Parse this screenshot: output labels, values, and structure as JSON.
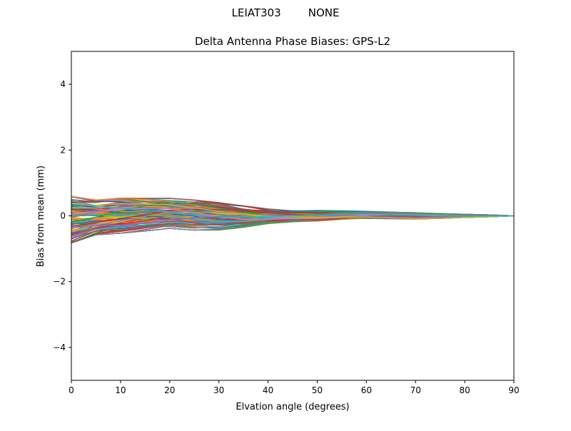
{
  "figure": {
    "suptitle": "LEIAT303        NONE"
  },
  "chart_data": {
    "type": "line",
    "title": "Delta Antenna Phase Biases: GPS-L2",
    "xlabel": "Elvation angle (degrees)",
    "ylabel": "Bias from mean (mm)",
    "xlim": [
      0,
      90
    ],
    "ylim": [
      -5,
      5
    ],
    "xticks": [
      0,
      10,
      20,
      30,
      40,
      50,
      60,
      70,
      80,
      90
    ],
    "yticks": [
      -4,
      -2,
      0,
      2,
      4
    ],
    "xtick_labels": [
      "0",
      "10",
      "20",
      "30",
      "40",
      "50",
      "60",
      "70",
      "80",
      "90"
    ],
    "ytick_labels": [
      "−4",
      "−2",
      "0",
      "2",
      "4"
    ],
    "grid": false,
    "legend": "none",
    "x": [
      0,
      5,
      10,
      15,
      20,
      25,
      30,
      35,
      40,
      45,
      50,
      55,
      60,
      65,
      70,
      75,
      80,
      85,
      90
    ],
    "envelope": {
      "upper": [
        0.62,
        0.5,
        0.56,
        0.55,
        0.55,
        0.5,
        0.42,
        0.32,
        0.22,
        0.17,
        0.17,
        0.16,
        0.14,
        0.12,
        0.1,
        0.07,
        0.05,
        0.03,
        0.0
      ],
      "lower": [
        -0.85,
        -0.6,
        -0.55,
        -0.48,
        -0.4,
        -0.45,
        -0.45,
        -0.36,
        -0.25,
        -0.2,
        -0.18,
        -0.12,
        -0.08,
        -0.09,
        -0.1,
        -0.08,
        -0.05,
        -0.03,
        0.0
      ]
    },
    "series_count": 120,
    "color_cycle": [
      "#1f77b4",
      "#ff7f0e",
      "#2ca02c",
      "#d62728",
      "#9467bd",
      "#8c564b",
      "#e377c2",
      "#7f7f7f",
      "#bcbd22",
      "#17becf"
    ]
  }
}
